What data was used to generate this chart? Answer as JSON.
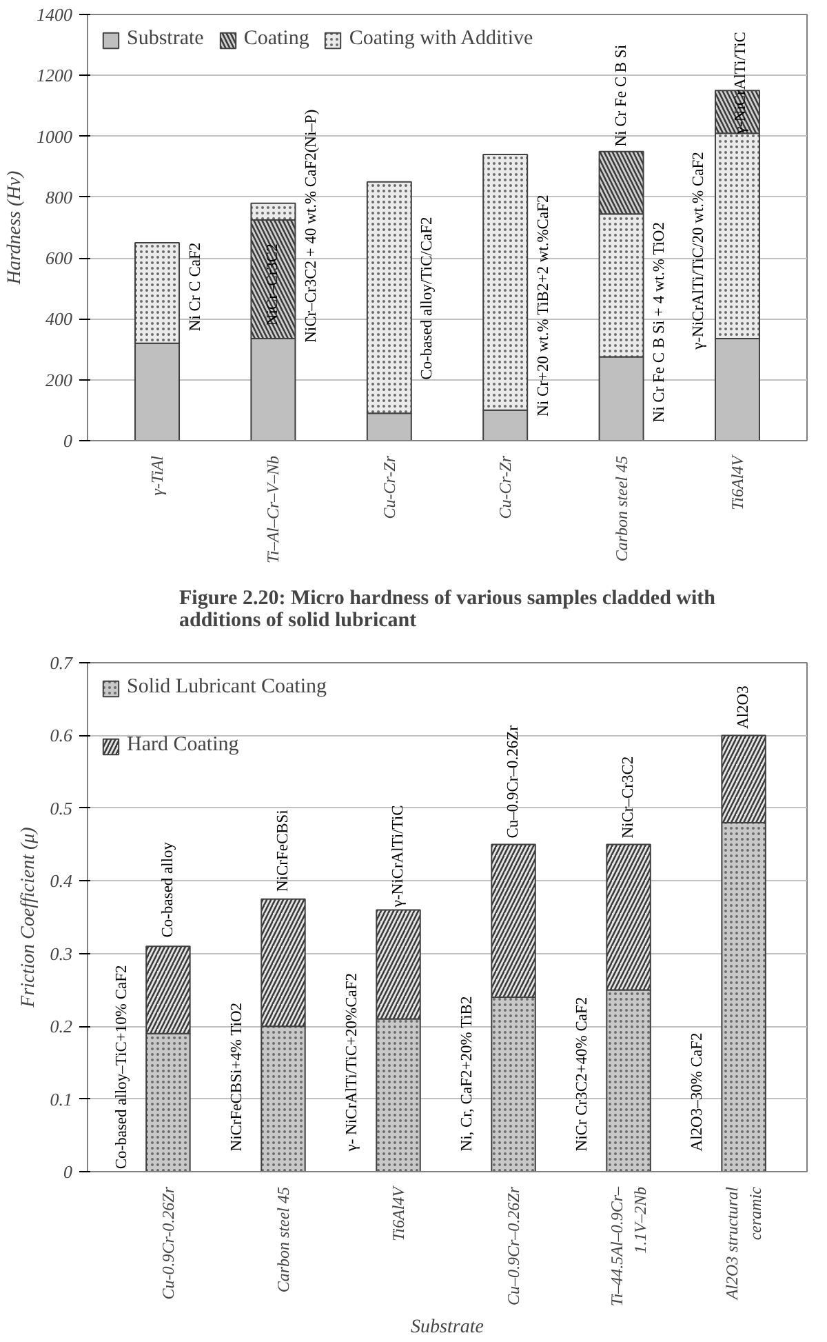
{
  "chart_data": [
    {
      "type": "bar",
      "stacked": true,
      "ylabel": "Hardness (Hv)",
      "categories": [
        "γ-TiAl",
        "Ti–Al–Cr–V–Nb",
        "Cu-Cr-Zr",
        "Cu-Cr-Zr",
        "Carbon steel 45",
        "Ti6Al4V"
      ],
      "ylim": [
        0,
        1400
      ],
      "yticks": [
        0,
        200,
        400,
        600,
        800,
        1000,
        1200,
        1400
      ],
      "grid": "y",
      "legend": "top left",
      "series": [
        {
          "name": "Substrate",
          "color": "#bfbfbf",
          "values": [
            320,
            335,
            90,
            100,
            275,
            335
          ]
        },
        {
          "name": "Coating",
          "color": "#d0d0d0",
          "values": [
            null,
            390,
            null,
            null,
            null,
            null
          ]
        },
        {
          "name": "Coating with Additive",
          "color": "#ebebeb",
          "values": [
            330,
            55,
            760,
            840,
            470,
            675
          ]
        },
        {
          "color": "#d0d0d0",
          "values": [
            null,
            null,
            null,
            null,
            205,
            140
          ]
        }
      ],
      "annotations": [
        "Ni Cr C CaF2",
        "NiCr–Cr3C2",
        "NiCr–Cr3C2 + 40 wt.% CaF2(Ni–P)",
        "Co-based alloy/TiC/CaF2",
        "Ni Cr+20 wt.% TiB2+2 wt.%CaF2",
        "Ni Cr Fe C B Si",
        "Ni Cr Fe C B Si + 4 wt.% TiO2",
        "γ-NiCrAlTi/TiC/20 wt.% CaF2",
        "γ-NiCrAlTi/TiC",
        "Figure 2.20: Micro hardness of various samples cladded with additions of solid lubricant"
      ]
    },
    {
      "type": "bar",
      "stacked": true,
      "ylabel": "Friction Coefficient (μ)",
      "xlabel": "Substrate",
      "categories": [
        "Cu-0.9Cr-0.26Zr",
        "Carbon steel 45",
        "Ti6Al4V",
        "Cu–0.9Cr–0.26Zr",
        "Ti–44.5Al–0.9Cr–1.1V–2Nb",
        "Al2O3 structural ceramic"
      ],
      "ylim": [
        0,
        0.7
      ],
      "yticks": [
        0,
        0.1,
        0.2,
        0.3,
        0.4,
        0.5,
        0.6,
        0.7
      ],
      "grid": "y",
      "legend": "top left",
      "series": [
        {
          "name": "Solid Lubricant Coating",
          "color": "#c8c8c8",
          "values": [
            0.19,
            0.2,
            0.21,
            0.24,
            0.25,
            0.48
          ]
        },
        {
          "name": "Hard Coating",
          "color": "#e6e6e6",
          "values": [
            0.12,
            0.175,
            0.15,
            0.21,
            0.2,
            0.12
          ]
        }
      ],
      "annotations": [
        "Co-based alloy–TiC+10% CaF2",
        "Co-based alloy",
        "NiCrFeCBSi+4% TiO2",
        "NiCrFeCBSi",
        "γ- NiCrAlTi/TiC+20%CaF2",
        "γ-NiCrAlTi/TiC",
        "Ni, Cr, CaF2+20% TiB2",
        "Cu–0.9Cr–0.26Zr",
        "NiCr  Cr3C2+40% CaF2",
        "NiCr–Cr3C2",
        "Al2O3–30% CaF2",
        "Al2O3"
      ]
    }
  ]
}
